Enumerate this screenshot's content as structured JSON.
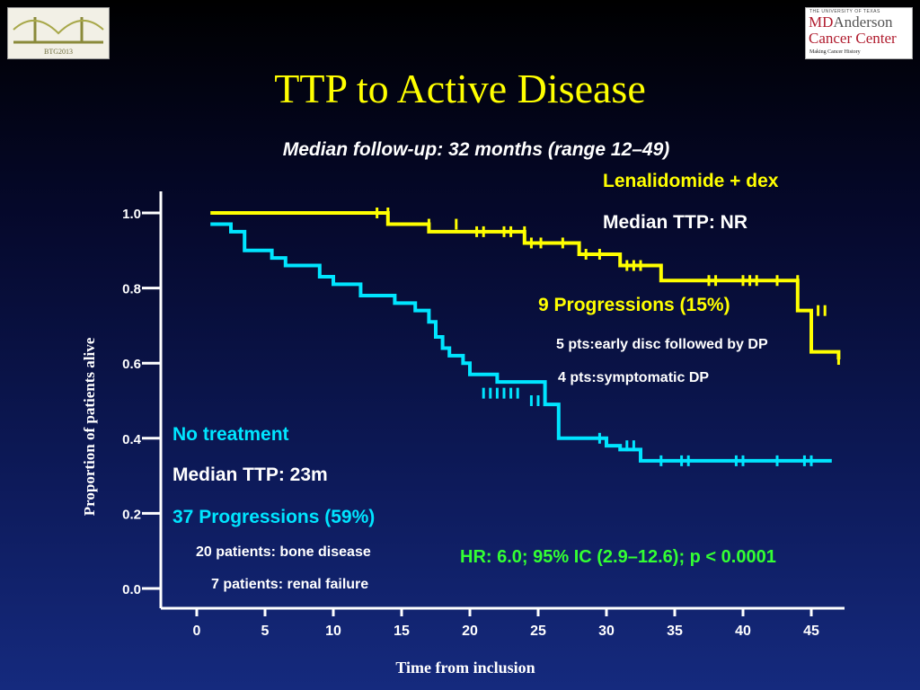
{
  "logos": {
    "left_caption": "BTG2013",
    "right_top": "THE UNIVERSITY OF TEXAS",
    "right_md": "MD",
    "right_anderson": "Anderson",
    "right_cancer_center": "Cancer Center",
    "right_tagline": "Making Cancer History"
  },
  "title": "TTP to Active Disease",
  "subtitle": "Median follow-up: 32 months (range 12–49)",
  "annotations": {
    "len_title": "Lenalidomide + dex",
    "len_median": "Median TTP: NR",
    "len_progressions": "9 Progressions (15%)",
    "len_detail1": "5 pts:early disc followed by DP",
    "len_detail2": "4 pts:symptomatic DP",
    "nt_title": "No treatment",
    "nt_median": "Median TTP: 23m",
    "nt_progressions": "37 Progressions (59%)",
    "nt_detail1": "20 patients: bone disease",
    "nt_detail2": "7 patients: renal failure",
    "hr": "HR: 6.0; 95% IC (2.9–12.6); p < 0.0001"
  },
  "colors": {
    "lenalidomide": "#ffff00",
    "no_treatment": "#00e5ff",
    "hr_text": "#33ff33",
    "axis": "#ffffff"
  },
  "chart_data": {
    "type": "line",
    "xlabel": "Time from inclusion",
    "ylabel": "Proportion of patients alive",
    "xlim": [
      0,
      47
    ],
    "ylim": [
      0,
      1
    ],
    "x_ticks": [
      "0",
      "5",
      "10",
      "15",
      "20",
      "25",
      "30",
      "35",
      "40",
      "45"
    ],
    "y_ticks": [
      "0.0",
      "0.2",
      "0.4",
      "0.6",
      "0.8",
      "1.0"
    ],
    "series": [
      {
        "name": "Lenalidomide + dex",
        "color": "#ffff00",
        "x": [
          1,
          14,
          14,
          17,
          17,
          24,
          24,
          25,
          25,
          28,
          28,
          31,
          31,
          34,
          34,
          44,
          44,
          45,
          45,
          47,
          47
        ],
        "y": [
          1.0,
          1.0,
          0.97,
          0.97,
          0.95,
          0.95,
          0.92,
          0.92,
          0.92,
          0.92,
          0.89,
          0.89,
          0.86,
          0.86,
          0.82,
          0.82,
          0.74,
          0.74,
          0.63,
          0.63,
          0.61
        ],
        "censor_x": [
          13.2,
          14,
          17,
          19,
          20.5,
          21,
          22.5,
          23,
          24,
          24.5,
          25.2,
          26.8,
          28.5,
          29.5,
          31.5,
          32,
          32.5,
          37.5,
          38,
          40,
          40.5,
          41,
          42.5,
          44,
          45.5,
          46,
          47
        ],
        "censor_y": [
          1.0,
          1.0,
          0.97,
          0.97,
          0.95,
          0.95,
          0.95,
          0.95,
          0.95,
          0.92,
          0.92,
          0.92,
          0.89,
          0.89,
          0.86,
          0.86,
          0.86,
          0.82,
          0.82,
          0.82,
          0.82,
          0.82,
          0.82,
          0.82,
          0.74,
          0.74,
          0.61
        ]
      },
      {
        "name": "No treatment",
        "color": "#00e5ff",
        "x": [
          1,
          2.5,
          2.5,
          3.5,
          3.5,
          5.5,
          5.5,
          6.5,
          6.5,
          9,
          9,
          10,
          10,
          12,
          12,
          14.5,
          14.5,
          16,
          16,
          17,
          17,
          17.5,
          17.5,
          18,
          18,
          18.5,
          18.5,
          19.5,
          19.5,
          20,
          20,
          22,
          22,
          25.5,
          25.5,
          26.5,
          26.5,
          30,
          30,
          31,
          31,
          32.5,
          32.5,
          46.5
        ],
        "y": [
          0.97,
          0.97,
          0.95,
          0.95,
          0.9,
          0.9,
          0.88,
          0.88,
          0.86,
          0.86,
          0.83,
          0.83,
          0.81,
          0.81,
          0.78,
          0.78,
          0.76,
          0.76,
          0.74,
          0.74,
          0.71,
          0.71,
          0.67,
          0.67,
          0.64,
          0.64,
          0.62,
          0.62,
          0.6,
          0.6,
          0.57,
          0.57,
          0.55,
          0.55,
          0.49,
          0.49,
          0.4,
          0.4,
          0.38,
          0.38,
          0.37,
          0.37,
          0.34,
          0.34
        ],
        "censor_x": [
          21,
          21.5,
          22,
          22.5,
          23,
          23.5,
          24.5,
          25,
          29.5,
          31.5,
          32,
          34,
          35.5,
          36,
          39.5,
          40,
          42.5,
          44.5,
          45
        ],
        "censor_y": [
          0.52,
          0.52,
          0.52,
          0.52,
          0.52,
          0.52,
          0.5,
          0.5,
          0.4,
          0.38,
          0.38,
          0.34,
          0.34,
          0.34,
          0.34,
          0.34,
          0.34,
          0.34,
          0.34
        ]
      }
    ]
  }
}
